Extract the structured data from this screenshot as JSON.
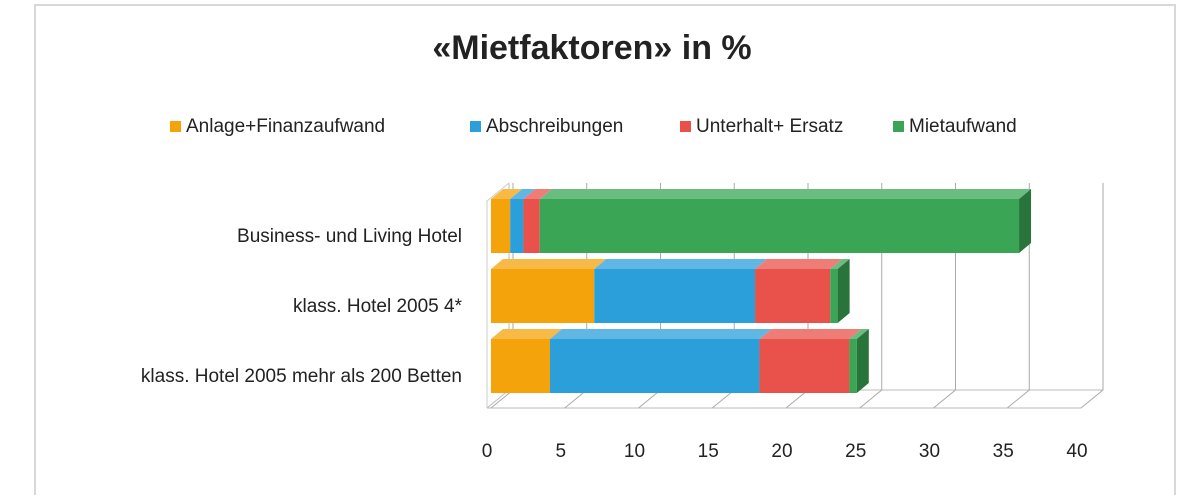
{
  "chart_data": {
    "type": "bar3d_stacked_horizontal",
    "title": "«Mietfaktoren» in %",
    "categories": [
      "Business- und Living Hotel",
      "klass. Hotel 2005 4*",
      "klass. Hotel 2005 mehr als 200 Betten"
    ],
    "series": [
      {
        "name": "Anlage+Finanzaufwand",
        "color": "#f5a30a",
        "values": [
          1.3,
          7.0,
          4.0
        ]
      },
      {
        "name": "Abschreibungen",
        "color": "#2b9fd9",
        "values": [
          0.9,
          10.9,
          14.2
        ]
      },
      {
        "name": "Unterhalt+ Ersatz",
        "color": "#e8524a",
        "values": [
          1.1,
          5.1,
          6.1
        ]
      },
      {
        "name": "Mietaufwand",
        "color": "#3aa655",
        "values": [
          32.5,
          0.5,
          0.5
        ]
      }
    ],
    "xlim": [
      0,
      40
    ],
    "xticks": [
      0,
      5,
      10,
      15,
      20,
      25,
      30,
      35,
      40
    ],
    "grid": true,
    "legend": "top"
  }
}
